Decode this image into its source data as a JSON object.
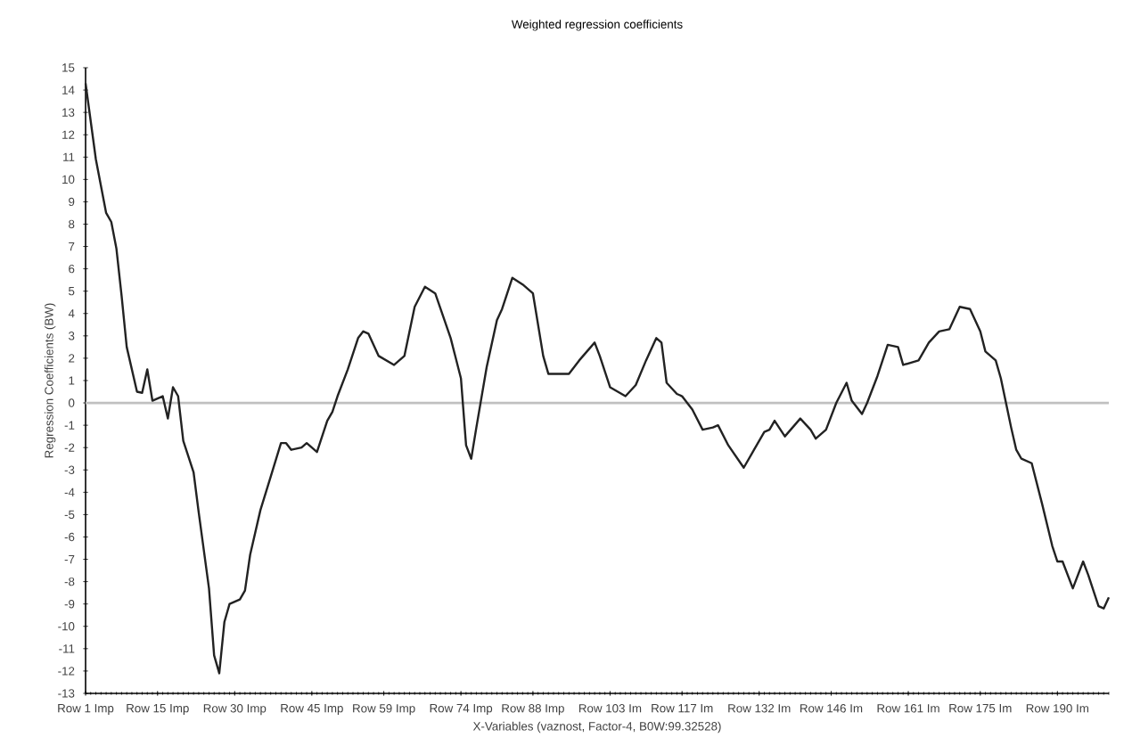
{
  "chart_data": {
    "type": "line",
    "title": "Weighted regression coefficients",
    "xlabel": "X-Variables (vaznost, Factor-4, B0W:99.32528)",
    "ylabel": "Regression Coefficients (BW)",
    "categories": [
      "Row 1 Imp",
      null,
      null,
      null,
      null,
      null,
      null,
      null,
      null,
      null,
      null,
      null,
      null,
      null,
      "Row 15 Imp",
      null,
      null,
      null,
      null,
      null,
      null,
      null,
      null,
      null,
      null,
      null,
      null,
      null,
      null,
      "Row 30 Imp",
      null,
      null,
      null,
      null,
      null,
      null,
      null,
      null,
      null,
      null,
      null,
      null,
      null,
      null,
      "Row 45 Imp",
      null,
      null,
      null,
      null,
      null,
      null,
      null,
      null,
      null,
      null,
      null,
      null,
      null,
      "Row 59 Imp",
      null,
      null,
      null,
      null,
      null,
      null,
      null,
      null,
      null,
      null,
      null,
      null,
      null,
      null,
      "Row 74 Imp",
      null,
      null,
      null,
      null,
      null,
      null,
      null,
      null,
      null,
      null,
      null,
      null,
      null,
      "Row 88 Imp",
      null,
      null,
      null,
      null,
      null,
      null,
      null,
      null,
      null,
      null,
      null,
      null,
      null,
      null,
      "Row 103 Im",
      null,
      null,
      null,
      null,
      null,
      null,
      null,
      null,
      null,
      null,
      null,
      null,
      null,
      "Row 117 Im",
      null,
      null,
      null,
      null,
      null,
      null,
      null,
      null,
      null,
      null,
      null,
      null,
      null,
      null,
      "Row 132 Im",
      null,
      null,
      null,
      null,
      null,
      null,
      null,
      null,
      null,
      null,
      null,
      null,
      null,
      "Row 146 Im",
      null,
      null,
      null,
      null,
      null,
      null,
      null,
      null,
      null,
      null,
      null,
      null,
      null,
      null,
      "Row 161 Im",
      null,
      null,
      null,
      null,
      null,
      null,
      null,
      null,
      null,
      null,
      null,
      null,
      null,
      "Row 175 Im",
      null,
      null,
      null,
      null,
      null,
      null,
      null,
      null,
      null,
      null,
      null,
      null,
      null,
      null,
      "Row 190 Im",
      null,
      null,
      null,
      null,
      null,
      null,
      null,
      null,
      null,
      null
    ],
    "ylim": [
      -13,
      15
    ],
    "yticks": [
      -13,
      -12,
      -11,
      -10,
      -9,
      -8,
      -7,
      -6,
      -5,
      -4,
      -3,
      -2,
      -1,
      0,
      1,
      2,
      3,
      4,
      5,
      6,
      7,
      8,
      9,
      10,
      11,
      12,
      13,
      14,
      15
    ],
    "grid": false,
    "marker": "none",
    "line_style": "solid",
    "ref_lines": [
      {
        "axis": "y",
        "value": 0,
        "color": "#c0c0c0"
      }
    ],
    "series": [
      {
        "color": "#222222",
        "values": [
          14.3,
          null,
          10.9,
          null,
          8.5,
          8.1,
          6.9,
          4.8,
          2.5,
          null,
          0.5,
          0.45,
          1.5,
          0.1,
          null,
          0.3,
          -0.7,
          0.7,
          0.3,
          -1.7,
          null,
          -3.1,
          -4.9,
          null,
          -8.3,
          -11.3,
          -12.1,
          -9.8,
          -9.0,
          null,
          -8.8,
          -8.4,
          -6.8,
          null,
          -4.8,
          null,
          -3.3,
          null,
          -1.8,
          -1.8,
          -2.1,
          null,
          -2.0,
          -1.8,
          null,
          -2.2,
          null,
          -0.8,
          -0.4,
          0.3,
          null,
          1.5,
          null,
          2.9,
          3.2,
          3.1,
          null,
          2.1,
          null,
          null,
          1.7,
          null,
          2.1,
          null,
          4.3,
          null,
          5.2,
          null,
          4.9,
          null,
          null,
          2.9,
          null,
          1.1,
          -1.9,
          -2.5,
          -1.1,
          null,
          1.6,
          null,
          3.7,
          4.2,
          null,
          5.6,
          null,
          5.3,
          null,
          4.9,
          null,
          2.1,
          1.3,
          null,
          null,
          null,
          1.3,
          null,
          1.9,
          null,
          null,
          2.7,
          2.1,
          null,
          0.7,
          null,
          null,
          0.3,
          null,
          0.8,
          null,
          1.9,
          null,
          2.9,
          2.7,
          0.9,
          null,
          0.4,
          0.3,
          null,
          -0.3,
          null,
          -1.2,
          null,
          -1.1,
          -1.0,
          null,
          -1.9,
          null,
          null,
          -2.9,
          null,
          -2.1,
          null,
          -1.3,
          -1.2,
          -0.8,
          null,
          -1.5,
          null,
          null,
          -0.7,
          null,
          -1.2,
          -1.6,
          null,
          -1.2,
          null,
          0,
          null,
          0.9,
          0.1,
          null,
          -0.5,
          0,
          null,
          1.2,
          1.9,
          2.6,
          null,
          2.5,
          1.7,
          null,
          null,
          1.9,
          null,
          2.7,
          null,
          3.2,
          null,
          3.3,
          null,
          4.3,
          null,
          4.2,
          null,
          3.2,
          2.3,
          null,
          1.9,
          1.1,
          0,
          -1.1,
          -2.1,
          -2.5,
          null,
          -2.7,
          null,
          -4.5,
          null,
          -6.4,
          -7.1,
          -7.1,
          null,
          -8.3,
          null,
          -7.1,
          -7.7,
          null,
          -9.1,
          -9.2,
          -8.7
        ]
      }
    ]
  }
}
